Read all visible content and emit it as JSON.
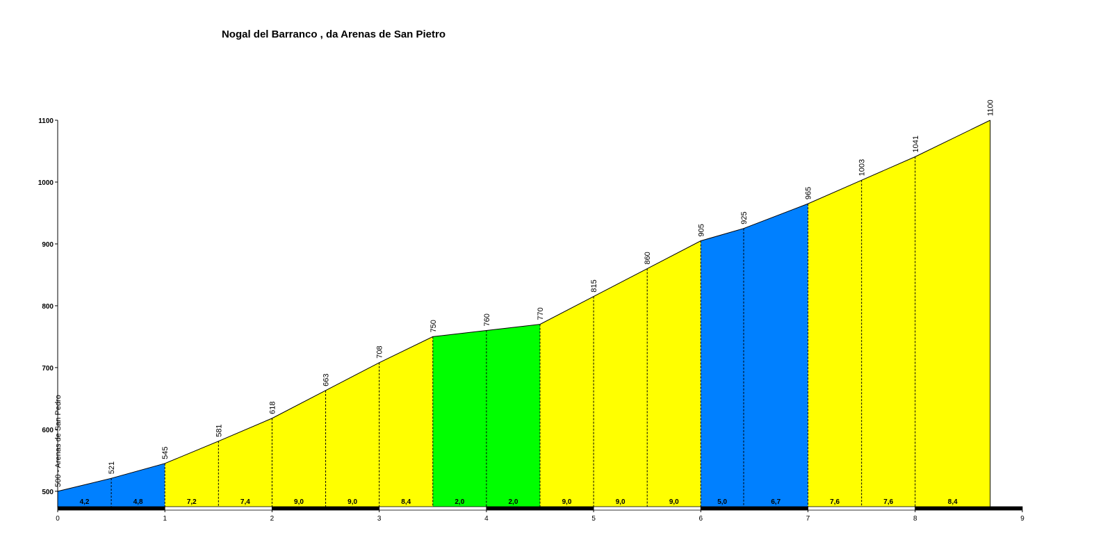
{
  "chart_data": {
    "type": "elevation-profile",
    "title": "Nogal del Barranco , da Arenas de San Pietro",
    "x": [
      0,
      0.5,
      1,
      1.5,
      2,
      2.5,
      3,
      3.5,
      4,
      4.5,
      5,
      5.5,
      6,
      6.4,
      7,
      7.5,
      8,
      8.7
    ],
    "series": [
      {
        "values": [
          500,
          521,
          545,
          581,
          618,
          663,
          708,
          750,
          760,
          770,
          815,
          860,
          905,
          925,
          965,
          1003,
          1041,
          1100
        ],
        "value_labels": [
          "500 - Arenas de San Pedro",
          "521",
          "545",
          "581",
          "618",
          "663",
          "708",
          "750",
          "760",
          "770",
          "815",
          "860",
          "905",
          "925",
          "965",
          "1003",
          "1041",
          "1100"
        ]
      }
    ],
    "segments": {
      "gradients": [
        4.2,
        4.8,
        7.2,
        7.4,
        9.0,
        9.0,
        8.4,
        2.0,
        2.0,
        9.0,
        9.0,
        9.0,
        5.0,
        6.7,
        7.6,
        7.6,
        8.4
      ],
      "value_labels": [
        "4,2",
        "4,8",
        "7,2",
        "7,4",
        "9,0",
        "9,0",
        "8,4",
        "2,0",
        "2,0",
        "9,0",
        "9,0",
        "9,0",
        "5,0",
        "6,7",
        "7,6",
        "7,6",
        "8,4"
      ],
      "colors": [
        "#0080ff",
        "#0080ff",
        "#ffff00",
        "#ffff00",
        "#ffff00",
        "#ffff00",
        "#ffff00",
        "#00ff00",
        "#00ff00",
        "#ffff00",
        "#ffff00",
        "#ffff00",
        "#0080ff",
        "#0080ff",
        "#ffff00",
        "#ffff00",
        "#ffff00"
      ]
    },
    "xlim": [
      0,
      9
    ],
    "xticks": [
      0,
      1,
      2,
      3,
      4,
      5,
      6,
      7,
      8,
      9
    ],
    "ylim": [
      474,
      1100
    ],
    "yticks": [
      500,
      600,
      700,
      800,
      900,
      1000,
      1100
    ]
  }
}
